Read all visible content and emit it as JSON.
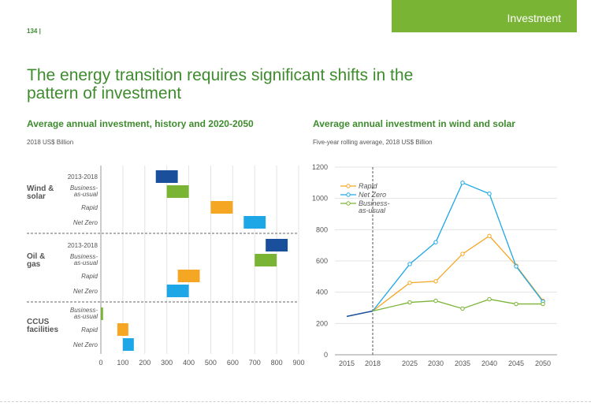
{
  "header": {
    "page_number": "134 |",
    "section": "Investment"
  },
  "title": "The energy transition requires significant shifts in the pattern of investment",
  "colors": {
    "green_text": "#3e8c2e",
    "tab_green": "#7ab434",
    "history": "#1a4f9c",
    "business_as_usual": "#7ab434",
    "rapid": "#f5a623",
    "net_zero": "#1ea7e6"
  },
  "chart_data": [
    {
      "type": "bar",
      "orientation": "horizontal",
      "title": "Average annual investment, history and 2020-2050",
      "subtitle": "2018 US$ Billion",
      "xlim": [
        0,
        900
      ],
      "x_ticks": [
        0,
        100,
        200,
        300,
        400,
        500,
        600,
        700,
        800,
        900
      ],
      "groups": [
        {
          "name": "Wind & solar",
          "label_lines": [
            "Wind &",
            "solar"
          ],
          "bars": [
            {
              "label_lines": [
                "2013-2018"
              ],
              "italic": false,
              "start": 250,
              "end": 350,
              "color_key": "history"
            },
            {
              "label_lines": [
                "Business-",
                "as-usual"
              ],
              "italic": true,
              "start": 300,
              "end": 400,
              "color_key": "business_as_usual"
            },
            {
              "label_lines": [
                "Rapid"
              ],
              "italic": true,
              "start": 500,
              "end": 600,
              "color_key": "rapid"
            },
            {
              "label_lines": [
                "Net Zero"
              ],
              "italic": true,
              "start": 650,
              "end": 750,
              "color_key": "net_zero"
            }
          ]
        },
        {
          "name": "Oil & gas",
          "label_lines": [
            "Oil &",
            "gas"
          ],
          "bars": [
            {
              "label_lines": [
                "2013-2018"
              ],
              "italic": false,
              "start": 750,
              "end": 850,
              "color_key": "history"
            },
            {
              "label_lines": [
                "Business-",
                "as-usual"
              ],
              "italic": true,
              "start": 700,
              "end": 800,
              "color_key": "business_as_usual"
            },
            {
              "label_lines": [
                "Rapid"
              ],
              "italic": true,
              "start": 350,
              "end": 450,
              "color_key": "rapid"
            },
            {
              "label_lines": [
                "Net Zero"
              ],
              "italic": true,
              "start": 300,
              "end": 400,
              "color_key": "net_zero"
            }
          ]
        },
        {
          "name": "CCUS facilities",
          "label_lines": [
            "CCUS",
            "facilities"
          ],
          "bars": [
            {
              "label_lines": [
                "Business-",
                "as-usual"
              ],
              "italic": true,
              "start": 0,
              "end": 10,
              "color_key": "business_as_usual"
            },
            {
              "label_lines": [
                "Rapid"
              ],
              "italic": true,
              "start": 75,
              "end": 125,
              "color_key": "rapid"
            },
            {
              "label_lines": [
                "Net Zero"
              ],
              "italic": true,
              "start": 100,
              "end": 150,
              "color_key": "net_zero"
            }
          ]
        }
      ]
    },
    {
      "type": "line",
      "title": "Average annual investment in wind and solar",
      "subtitle": "Five-year rolling average, 2018 US$ Billion",
      "x_ticks": [
        2015,
        2018,
        2025,
        2030,
        2035,
        2040,
        2045,
        2050
      ],
      "y_ticks": [
        0,
        200,
        400,
        600,
        800,
        1000,
        1200
      ],
      "ylim": [
        0,
        1200
      ],
      "history": {
        "x": [
          2015,
          2018
        ],
        "values": [
          245,
          280
        ],
        "color_key": "history"
      },
      "vline_x": 2018,
      "series": [
        {
          "name": "Rapid",
          "color_key": "rapid",
          "x": [
            2018,
            2025,
            2030,
            2035,
            2040,
            2045,
            2050
          ],
          "values": [
            280,
            460,
            470,
            645,
            760,
            570,
            345
          ]
        },
        {
          "name": "Net Zero",
          "color_key": "net_zero",
          "x": [
            2018,
            2025,
            2030,
            2035,
            2040,
            2045,
            2050
          ],
          "values": [
            280,
            580,
            720,
            1100,
            1030,
            565,
            340
          ]
        },
        {
          "name": "Business-as-usual",
          "legend_lines": [
            "Business-",
            "as-usual"
          ],
          "color_key": "business_as_usual",
          "x": [
            2018,
            2025,
            2030,
            2035,
            2040,
            2045,
            2050
          ],
          "values": [
            280,
            335,
            345,
            295,
            355,
            325,
            325
          ]
        }
      ]
    }
  ]
}
